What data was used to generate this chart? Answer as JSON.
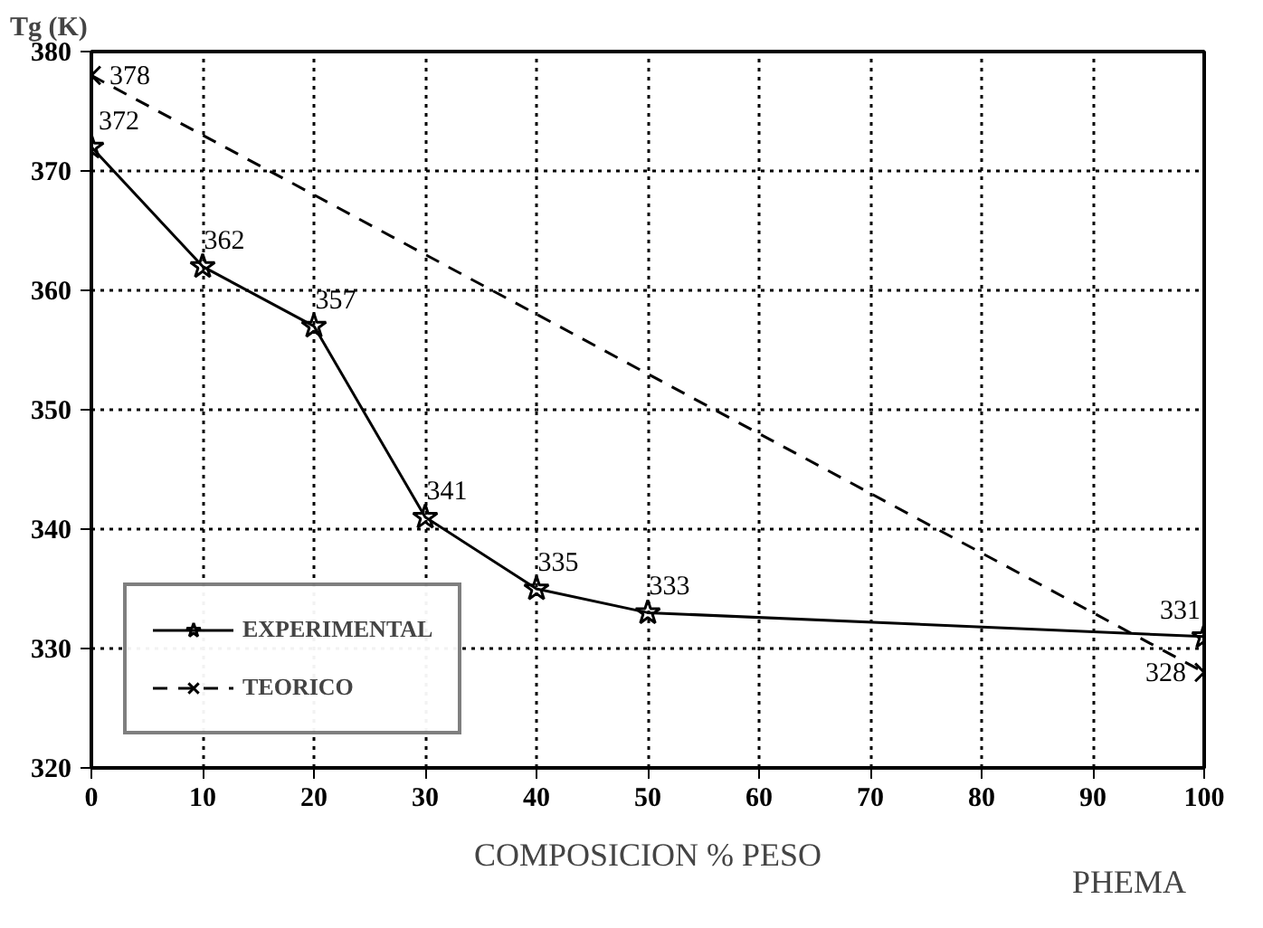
{
  "chart_data": {
    "type": "line",
    "ylabel": "Tg (K)",
    "xlabel": "COMPOSICION % PESO",
    "annotations": [
      "PHEMA"
    ],
    "xlim": [
      0,
      100
    ],
    "ylim": [
      320,
      380
    ],
    "xticks": [
      0,
      10,
      20,
      30,
      40,
      50,
      60,
      70,
      80,
      90,
      100
    ],
    "yticks": [
      320,
      330,
      340,
      350,
      360,
      370,
      380
    ],
    "grid": true,
    "legend": "bottom left",
    "data_labels": true,
    "series": [
      {
        "name": "EXPERIMENTAL",
        "color": "#000000",
        "x": [
          0,
          10,
          20,
          30,
          40,
          50,
          100
        ],
        "values": [
          372,
          362,
          357,
          341,
          335,
          333,
          331
        ],
        "marker": "star",
        "line_style": "solid"
      },
      {
        "name": "TEORICO",
        "color": "#000000",
        "x": [
          0,
          100
        ],
        "values": [
          378,
          328
        ],
        "marker": "cross",
        "line_style": "dashed"
      }
    ]
  }
}
